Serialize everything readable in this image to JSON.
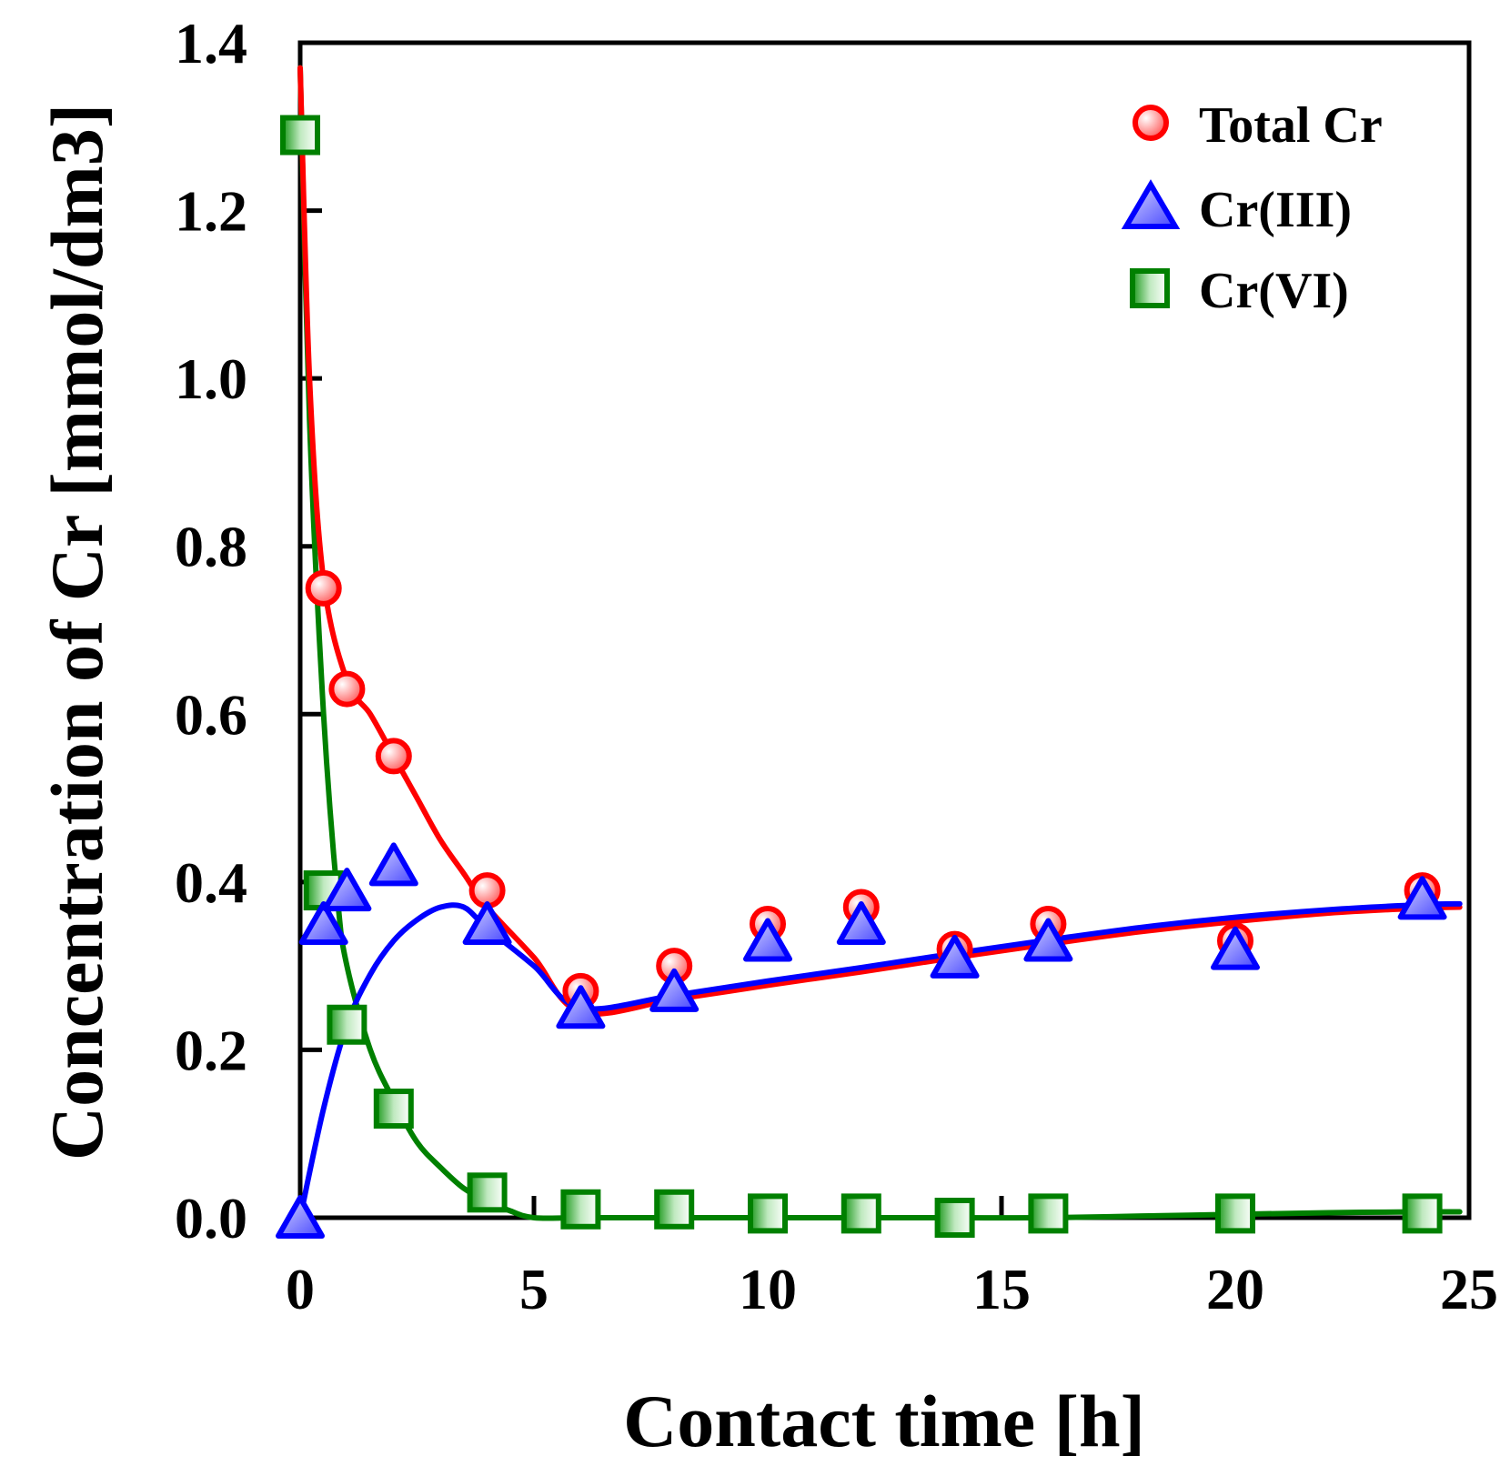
{
  "chart_data": {
    "type": "scatter",
    "title": "",
    "xlabel": "Contact time [h]",
    "ylabel": "Concentration of Cr [mmol/dm3]",
    "xlim": [
      0,
      25
    ],
    "ylim": [
      0,
      1.4
    ],
    "xticks": [
      0,
      5,
      10,
      15,
      20,
      25
    ],
    "xtick_labels": [
      "0",
      "5",
      "10",
      "15",
      "20",
      "25"
    ],
    "yticks": [
      0,
      0.2,
      0.4,
      0.6,
      0.8,
      1.0,
      1.2,
      1.4
    ],
    "ytick_labels": [
      "0.0",
      "0.2",
      "0.4",
      "0.6",
      "0.8",
      "1.0",
      "1.2",
      "1.4"
    ],
    "grid": false,
    "legend_position": "top-right",
    "series": [
      {
        "name": "Total Cr",
        "marker": "circle",
        "color": "#ff0000",
        "fill": "#ff9a9a",
        "x": [
          0.5,
          1,
          2,
          4,
          6,
          8,
          10,
          12,
          14,
          16,
          20,
          24
        ],
        "y": [
          0.75,
          0.63,
          0.55,
          0.39,
          0.27,
          0.3,
          0.35,
          0.37,
          0.32,
          0.35,
          0.33,
          0.39
        ],
        "fit": {
          "x": [
            0,
            0.2,
            0.5,
            1,
            1.5,
            2,
            2.5,
            3,
            3.5,
            4,
            5,
            6,
            8,
            10,
            12,
            14,
            16,
            18,
            20,
            22,
            24,
            24.8
          ],
          "y": [
            1.37,
            1.0,
            0.76,
            0.64,
            0.6,
            0.55,
            0.5,
            0.45,
            0.41,
            0.37,
            0.31,
            0.245,
            0.26,
            0.277,
            0.293,
            0.31,
            0.326,
            0.341,
            0.353,
            0.363,
            0.369,
            0.37
          ]
        }
      },
      {
        "name": "Cr(III)",
        "marker": "triangle",
        "color": "#0000ff",
        "fill": "#8c8cff",
        "x": [
          0,
          0.5,
          1,
          2,
          4,
          6,
          8,
          10,
          12,
          14,
          16,
          20,
          24
        ],
        "y": [
          0,
          0.35,
          0.39,
          0.42,
          0.35,
          0.25,
          0.27,
          0.33,
          0.35,
          0.31,
          0.33,
          0.32,
          0.38
        ],
        "fit": {
          "x": [
            0,
            0.5,
            1,
            1.5,
            2,
            2.5,
            3,
            3.5,
            4,
            5,
            6,
            8,
            10,
            12,
            14,
            16,
            18,
            20,
            22,
            24,
            24.8
          ],
          "y": [
            0,
            0.13,
            0.23,
            0.29,
            0.33,
            0.355,
            0.37,
            0.37,
            0.345,
            0.3,
            0.25,
            0.265,
            0.282,
            0.298,
            0.315,
            0.331,
            0.346,
            0.358,
            0.367,
            0.373,
            0.374
          ]
        }
      },
      {
        "name": "Cr(VI)",
        "marker": "square",
        "color": "#008000",
        "fill": "#7fcf7f",
        "x": [
          0,
          0.5,
          1,
          2,
          4,
          6,
          8,
          10,
          12,
          14,
          16,
          20,
          24
        ],
        "y": [
          1.29,
          0.39,
          0.23,
          0.13,
          0.03,
          0.01,
          0.01,
          0.005,
          0.005,
          0.0,
          0.005,
          0.005,
          0.005
        ],
        "fit": {
          "x": [
            0,
            0.2,
            0.5,
            0.8,
            1,
            1.5,
            2,
            2.5,
            3,
            3.5,
            4,
            4.5,
            5,
            6,
            8,
            10,
            12,
            14,
            16,
            18,
            20,
            22,
            24,
            24.8
          ],
          "y": [
            1.37,
            0.95,
            0.6,
            0.38,
            0.3,
            0.2,
            0.14,
            0.09,
            0.06,
            0.035,
            0.02,
            0.008,
            0.0,
            0.0,
            0.0,
            0.0,
            0.0,
            0.0,
            0.0,
            0.002,
            0.004,
            0.006,
            0.007,
            0.007
          ]
        }
      }
    ]
  }
}
